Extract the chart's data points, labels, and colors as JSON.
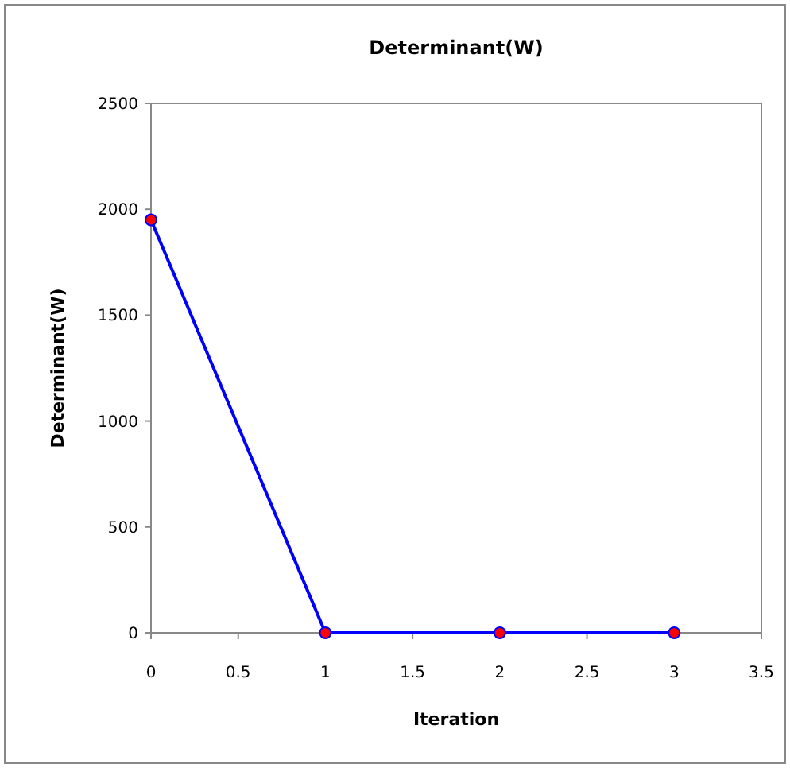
{
  "chart_data": {
    "type": "line",
    "title": "Determinant(W)",
    "xlabel": "Iteration",
    "ylabel": "Determinant(W)",
    "x": [
      0,
      1,
      2,
      3
    ],
    "series": [
      {
        "color": "#0000ff",
        "values": [
          1950,
          0,
          0,
          0
        ]
      }
    ],
    "xlim": [
      0,
      3.5
    ],
    "xticks": [
      0,
      0.5,
      1,
      1.5,
      2,
      2.5,
      3,
      3.5
    ],
    "ylim": [
      0,
      2500
    ],
    "yticks": [
      0,
      500,
      1000,
      1500,
      2000,
      2500
    ],
    "marker": "circle"
  }
}
